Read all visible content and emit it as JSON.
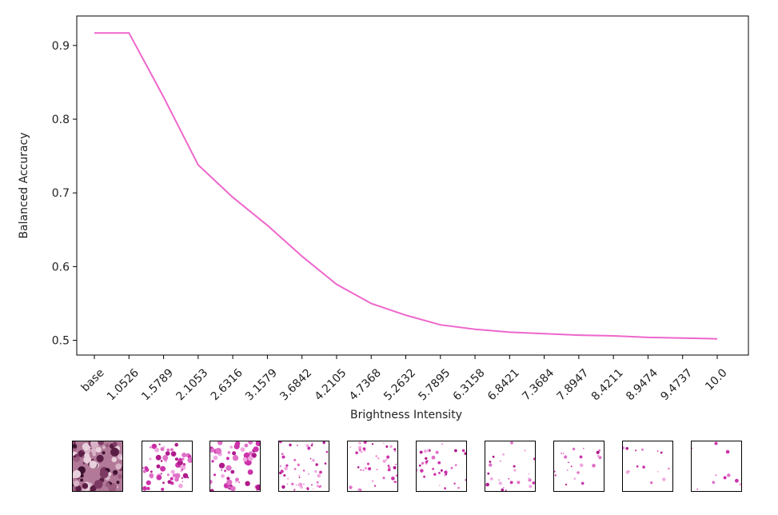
{
  "chart_data": {
    "type": "line",
    "title": "",
    "xlabel": "Brightness Intensity",
    "ylabel": "Balanced Accuracy",
    "categories": [
      "base",
      "1.0526",
      "1.5789",
      "2.1053",
      "2.6316",
      "3.1579",
      "3.6842",
      "4.2105",
      "4.7368",
      "5.2632",
      "5.7895",
      "6.3158",
      "6.8421",
      "7.3684",
      "7.8947",
      "8.4211",
      "8.9474",
      "9.4737",
      "10.0"
    ],
    "series": [
      {
        "color": "#ee66cc",
        "values": [
          0.917,
          0.917,
          0.83,
          0.738,
          0.694,
          0.656,
          0.614,
          0.576,
          0.55,
          0.534,
          0.521,
          0.515,
          0.511,
          0.509,
          0.507,
          0.506,
          0.504,
          0.503,
          0.502
        ]
      }
    ],
    "ylim": [
      0.48,
      0.94
    ],
    "yticks": [
      "0.5",
      "0.6",
      "0.7",
      "0.8",
      "0.9"
    ],
    "grid": false,
    "legend": "none"
  },
  "thumbnails": {
    "count": 10,
    "description_icon": "histology-sample-image"
  }
}
